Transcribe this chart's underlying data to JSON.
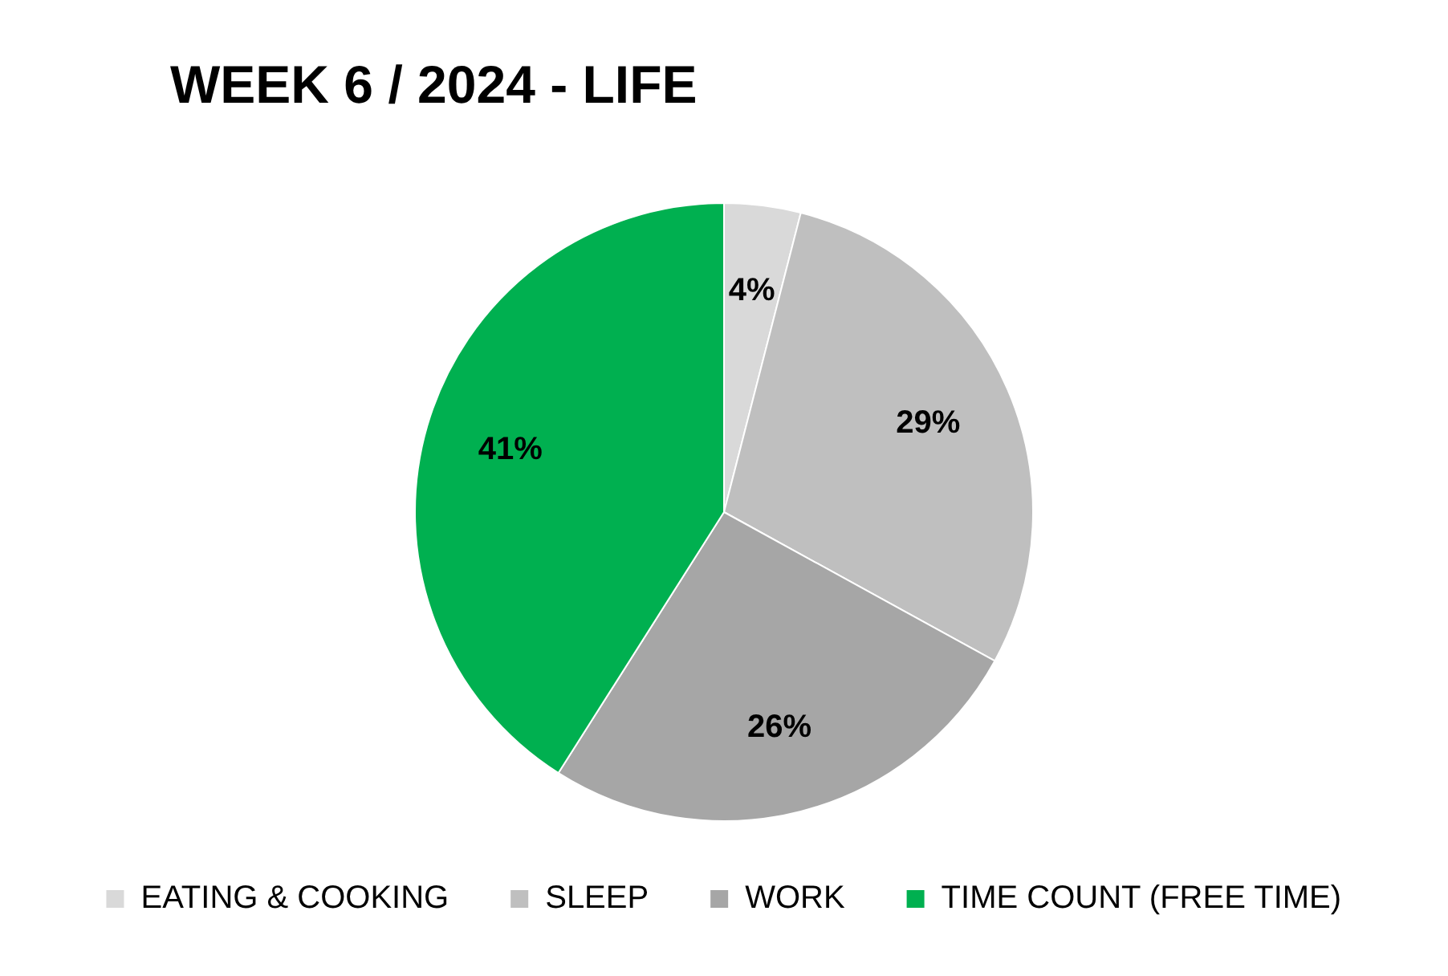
{
  "chart_data": {
    "type": "pie",
    "title": "WEEK 6 / 2024 - LIFE",
    "categories": [
      "EATING & COOKING",
      "SLEEP",
      "WORK",
      "TIME COUNT (FREE TIME)"
    ],
    "values": [
      4,
      29,
      26,
      41
    ],
    "colors": [
      "#d9d9d9",
      "#bfbfbf",
      "#a6a6a6",
      "#00b050"
    ],
    "value_labels": [
      "4%",
      "29%",
      "26%",
      "41%"
    ],
    "legend": "bottom"
  }
}
